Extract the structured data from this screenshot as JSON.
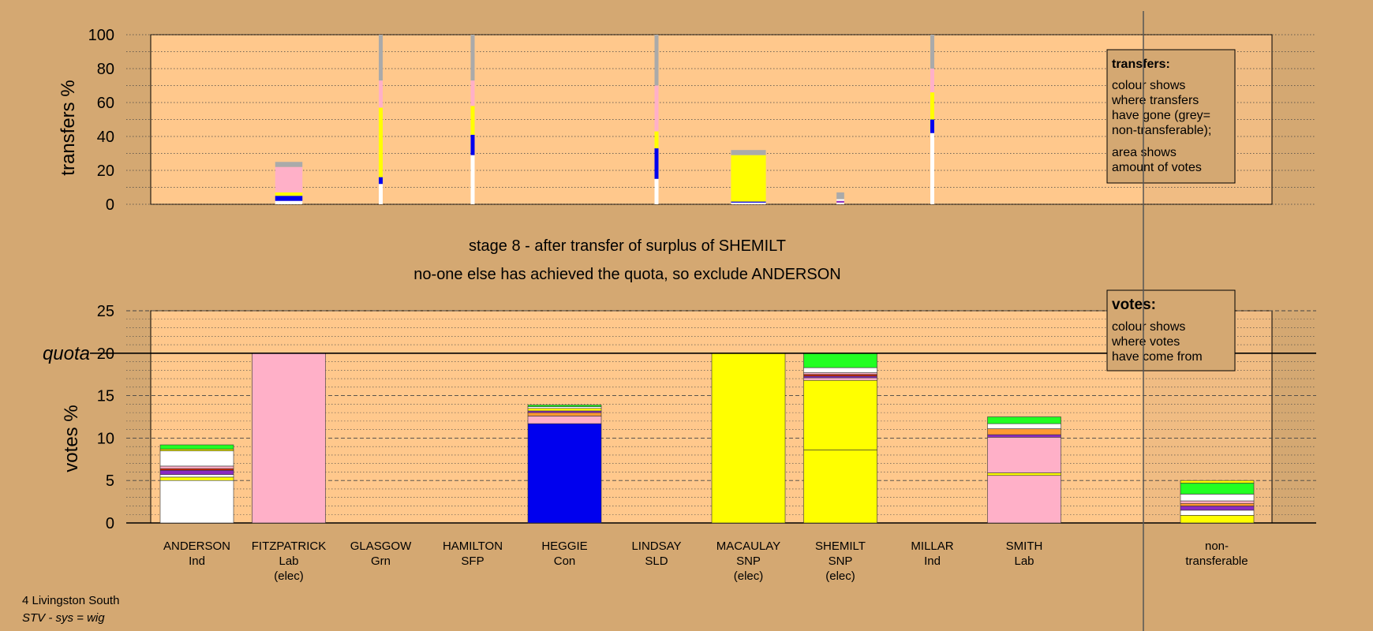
{
  "colors": {
    "background": "#d4a872",
    "plot_bg": "#ffc88c",
    "white": "#ffffff",
    "pink": "#ffb0c8",
    "yellow": "#ffff00",
    "blue": "#0000ee",
    "grey": "#aaaaaa",
    "green": "#22ff22",
    "orange": "#ff9933",
    "purple": "#8a2bc2",
    "red": "#cc2200"
  },
  "labels": {
    "stage_line1": "stage 8 - after transfer of surplus of SHEMILT",
    "stage_line2": "no-one else has achieved the quota, so exclude ANDERSON",
    "quota": "quota",
    "footer_line1": "4 Livingston South",
    "footer_line2": "STV - sys = wig"
  },
  "legend_transfers": {
    "title": "transfers:",
    "lines1": [
      "colour shows",
      "where transfers",
      "have gone (grey=",
      "non-transferable);"
    ],
    "lines2": [
      "area shows",
      "amount of votes"
    ]
  },
  "legend_votes": {
    "title": "votes:",
    "lines": [
      "colour shows",
      "where votes",
      "have come from"
    ]
  },
  "chart_data": [
    {
      "type": "bar",
      "name": "transfers",
      "ylabel": "transfers %",
      "ylim": [
        0,
        100
      ],
      "yticks": [
        0,
        20,
        40,
        60,
        80,
        100
      ],
      "columns": [
        {
          "candidate": "FITZPATRICK",
          "width_pct": 25,
          "segments": [
            [
              "white",
              2
            ],
            [
              "blue",
              3
            ],
            [
              "yellow",
              2
            ],
            [
              "pink",
              15
            ],
            [
              "grey",
              3
            ]
          ]
        },
        {
          "candidate": "GLASGOW",
          "width_pct": 3,
          "segments": [
            [
              "white",
              12
            ],
            [
              "blue",
              4
            ],
            [
              "yellow",
              41
            ],
            [
              "pink",
              16
            ],
            [
              "grey",
              27
            ]
          ]
        },
        {
          "candidate": "HAMILTON",
          "width_pct": 1,
          "segments": [
            [
              "white",
              29
            ],
            [
              "blue",
              12
            ],
            [
              "yellow",
              17
            ],
            [
              "pink",
              15
            ],
            [
              "grey",
              27
            ]
          ]
        },
        {
          "candidate": "LINDSAY",
          "width_pct": 2,
          "segments": [
            [
              "white",
              15
            ],
            [
              "blue",
              18
            ],
            [
              "yellow",
              10
            ],
            [
              "pink",
              27
            ],
            [
              "grey",
              30
            ]
          ]
        },
        {
          "candidate": "MACAULAY",
          "width_pct": 32,
          "segments": [
            [
              "white",
              1
            ],
            [
              "blue",
              0.6
            ],
            [
              "yellow",
              27.4
            ],
            [
              "grey",
              3
            ]
          ]
        },
        {
          "candidate": "SHEMILT",
          "width_pct": 7,
          "segments": [
            [
              "white",
              1
            ],
            [
              "purple",
              1
            ],
            [
              "white",
              1
            ],
            [
              "grey",
              4
            ]
          ]
        },
        {
          "candidate": "MILLAR",
          "width_pct": 3,
          "segments": [
            [
              "white",
              42
            ],
            [
              "blue",
              8
            ],
            [
              "yellow",
              16
            ],
            [
              "pink",
              14
            ],
            [
              "grey",
              20
            ]
          ]
        }
      ]
    },
    {
      "type": "bar",
      "name": "votes",
      "ylabel": "votes %",
      "ylim": [
        0,
        25
      ],
      "yticks": [
        0,
        5,
        10,
        15,
        20,
        25
      ],
      "quota": 20,
      "categories": [
        {
          "name": "ANDERSON",
          "party": "Ind",
          "status": "",
          "segments": [
            [
              "white",
              5.0
            ],
            [
              "yellow",
              0.4
            ],
            [
              "white",
              0.3
            ],
            [
              "purple",
              0.5
            ],
            [
              "red",
              0.2
            ],
            [
              "pink",
              0.3
            ],
            [
              "white",
              1.8
            ],
            [
              "yellow",
              0.2
            ],
            [
              "green",
              0.5
            ]
          ]
        },
        {
          "name": "FITZPATRICK",
          "party": "Lab",
          "status": "(elec)",
          "segments": [
            [
              "pink",
              20
            ]
          ]
        },
        {
          "name": "GLASGOW",
          "party": "Grn",
          "status": "",
          "segments": []
        },
        {
          "name": "HAMILTON",
          "party": "SFP",
          "status": "",
          "segments": []
        },
        {
          "name": "HEGGIE",
          "party": "Con",
          "status": "",
          "segments": [
            [
              "blue",
              11.7
            ],
            [
              "pink",
              0.9
            ],
            [
              "orange",
              0.4
            ],
            [
              "purple",
              0.2
            ],
            [
              "yellow",
              0.3
            ],
            [
              "white",
              0.2
            ],
            [
              "green",
              0.2
            ]
          ]
        },
        {
          "name": "LINDSAY",
          "party": "SLD",
          "status": "",
          "segments": []
        },
        {
          "name": "MACAULAY",
          "party": "SNP",
          "status": "(elec)",
          "segments": [
            [
              "yellow",
              20
            ]
          ]
        },
        {
          "name": "SHEMILT",
          "party": "SNP",
          "status": "(elec)",
          "segments": [
            [
              "yellow",
              8.6
            ],
            [
              "yellow",
              8.2
            ],
            [
              "pink",
              0.3
            ],
            [
              "purple",
              0.2
            ],
            [
              "red",
              0.2
            ],
            [
              "pink",
              0.2
            ],
            [
              "white",
              0.6
            ],
            [
              "green",
              1.7
            ]
          ]
        },
        {
          "name": "MILLAR",
          "party": "Ind",
          "status": "",
          "segments": []
        },
        {
          "name": "SMITH",
          "party": "Lab",
          "status": "",
          "segments": [
            [
              "pink",
              5.6
            ],
            [
              "yellow",
              0.3
            ],
            [
              "pink",
              4.2
            ],
            [
              "purple",
              0.3
            ],
            [
              "orange",
              0.7
            ],
            [
              "white",
              0.6
            ],
            [
              "green",
              0.8
            ]
          ]
        }
      ],
      "nontransferable": {
        "name": "non-",
        "name2": "transferable",
        "segments": [
          [
            "yellow",
            0.9
          ],
          [
            "white",
            0.6
          ],
          [
            "purple",
            0.5
          ],
          [
            "orange",
            0.3
          ],
          [
            "pink",
            0.3
          ],
          [
            "white",
            0.8
          ],
          [
            "green",
            1.3
          ],
          [
            "yellow",
            0.3
          ]
        ]
      }
    }
  ]
}
